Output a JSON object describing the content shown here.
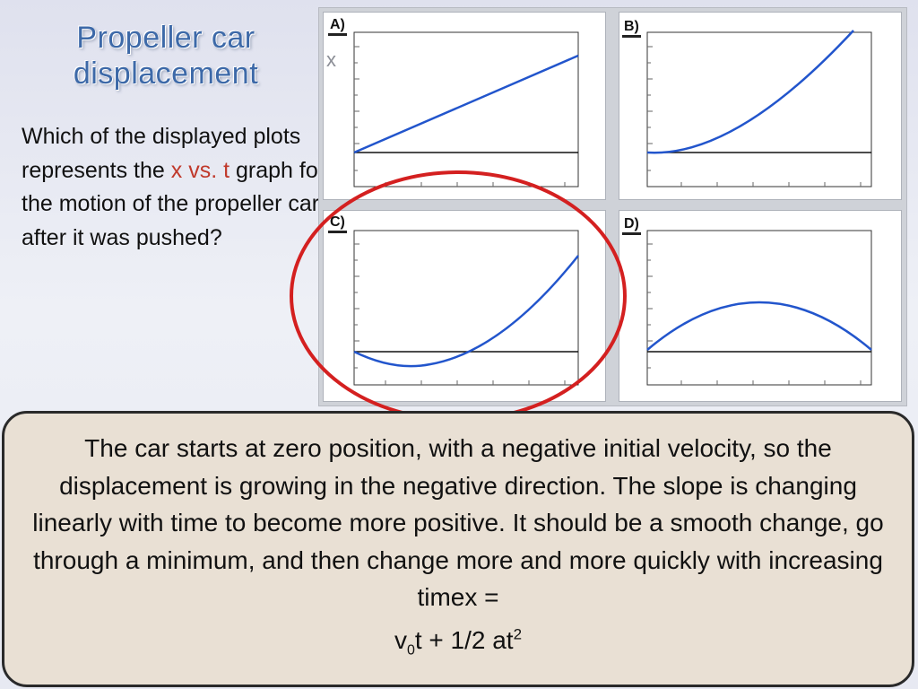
{
  "slide": {
    "title_line1": "Propeller car",
    "title_line2": "displacement",
    "question_part1": "Which of the displayed plots represents the ",
    "question_hl1": "x vs.",
    "question_hl2": "t",
    "question_part2": " graph for the motion of the propeller car after it was pushed?",
    "axis_letter": "x",
    "panels": [
      {
        "label": "A)",
        "curve": "linear increasing from baseline"
      },
      {
        "label": "B)",
        "curve": "quadratic increasing from baseline"
      },
      {
        "label": "C)",
        "curve": "dips below baseline to a minimum then rises"
      },
      {
        "label": "D)",
        "curve": "rises above baseline to a maximum then falls"
      }
    ],
    "selected_panel": "C)",
    "answer_text": "The car starts at zero position, with a negative initial velocity, so the displacement is growing in the negative direction. The slope is changing linearly with time to become more positive. It should be a smooth change, go through a minimum, and then change more and more quickly with increasing timex = ",
    "formula_v": "v",
    "formula_sub": "0",
    "formula_mid": "t + 1/2 at",
    "formula_sup": "2"
  },
  "colors": {
    "title": "#3d69a8",
    "highlight": "#c0392b",
    "curve": "#2255cc",
    "circle": "#d42020",
    "box_fill": "#e9e0d4"
  }
}
